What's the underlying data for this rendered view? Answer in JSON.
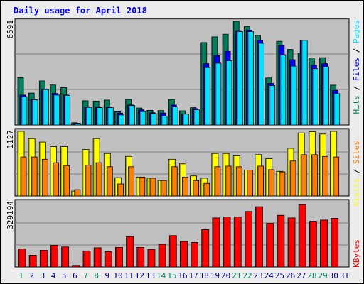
{
  "title": "Daily usage for April 2018",
  "colors": {
    "background": "#ececec",
    "panel": "#c0c0c0",
    "hits": "#00805c",
    "files": "#0000ff",
    "pages": "#00e0ff",
    "visits": "#ffff00",
    "sites": "#ff8000",
    "kbytes": "#ff0000",
    "title_text": "#0000ff",
    "weekend_label": "#00805c",
    "weekday_label": "#000080"
  },
  "chart_data": [
    {
      "type": "bar",
      "name": "hits-files-pages",
      "y_max_label": "6591",
      "ylim": [
        0,
        6591
      ],
      "categories": [
        "1",
        "2",
        "3",
        "4",
        "5",
        "6",
        "7",
        "8",
        "9",
        "10",
        "11",
        "12",
        "13",
        "14",
        "15",
        "16",
        "17",
        "18",
        "19",
        "20",
        "21",
        "22",
        "23",
        "24",
        "25",
        "26",
        "27",
        "28",
        "29",
        "30",
        "31"
      ],
      "weekend_days": [
        "1",
        "7",
        "8",
        "14",
        "15",
        "21",
        "22",
        "28",
        "29"
      ],
      "legend": [
        "Hits",
        "Files",
        "Pages"
      ],
      "series": [
        {
          "name": "Hits",
          "values": [
            3008,
            2029,
            2800,
            2541,
            2367,
            144,
            1540,
            1520,
            1580,
            840,
            1620,
            1080,
            930,
            915,
            1620,
            900,
            1100,
            5240,
            5600,
            5770,
            6591,
            6264,
            5700,
            2990,
            5320,
            4800,
            4560,
            4260,
            4280,
            2530,
            0
          ]
        },
        {
          "name": "Files",
          "values": [
            1900,
            1630,
            2270,
            2000,
            1900,
            110,
            1160,
            1140,
            1150,
            760,
            1270,
            960,
            780,
            760,
            1260,
            700,
            1040,
            3900,
            4400,
            4680,
            6000,
            6034,
            5400,
            2640,
            5040,
            4150,
            5400,
            3800,
            3900,
            2200,
            0
          ]
        },
        {
          "name": "Pages",
          "values": [
            1800,
            1600,
            2250,
            1900,
            1880,
            90,
            1120,
            1100,
            1100,
            640,
            1230,
            850,
            730,
            560,
            1150,
            690,
            960,
            3650,
            3930,
            4090,
            5940,
            5934,
            5194,
            2500,
            4440,
            3740,
            5380,
            3580,
            3700,
            1990,
            0
          ]
        }
      ]
    },
    {
      "type": "bar",
      "name": "visits-sites",
      "y_max_label": "1127",
      "ylim": [
        0,
        1127
      ],
      "categories": [
        "1",
        "2",
        "3",
        "4",
        "5",
        "6",
        "7",
        "8",
        "9",
        "10",
        "11",
        "12",
        "13",
        "14",
        "15",
        "16",
        "17",
        "18",
        "19",
        "20",
        "21",
        "22",
        "23",
        "24",
        "25",
        "26",
        "27",
        "28",
        "29",
        "30",
        "31"
      ],
      "legend": [
        "Sites",
        "Visits"
      ],
      "series": [
        {
          "name": "Visits",
          "values": [
            1127,
            1000,
            940,
            860,
            860,
            85,
            810,
            1000,
            740,
            320,
            690,
            330,
            310,
            270,
            640,
            560,
            350,
            310,
            740,
            740,
            700,
            450,
            720,
            650,
            430,
            830,
            1100,
            1120,
            1080,
            1127,
            0
          ]
        },
        {
          "name": "Sites",
          "values": [
            680,
            680,
            640,
            580,
            530,
            110,
            540,
            580,
            510,
            210,
            510,
            330,
            310,
            270,
            510,
            330,
            270,
            220,
            510,
            520,
            510,
            450,
            520,
            460,
            420,
            610,
            720,
            720,
            690,
            680,
            0
          ]
        }
      ]
    },
    {
      "type": "bar",
      "name": "kbytes",
      "y_max_label": "329194",
      "ylim": [
        0,
        329194
      ],
      "categories": [
        "1",
        "2",
        "3",
        "4",
        "5",
        "6",
        "7",
        "8",
        "9",
        "10",
        "11",
        "12",
        "13",
        "14",
        "15",
        "16",
        "17",
        "18",
        "19",
        "20",
        "21",
        "22",
        "23",
        "24",
        "25",
        "26",
        "27",
        "28",
        "29",
        "30",
        "31"
      ],
      "legend": [
        "KBytes"
      ],
      "series": [
        {
          "name": "KBytes",
          "values": [
            92000,
            60000,
            85000,
            110000,
            102000,
            8000,
            82000,
            98000,
            78000,
            100000,
            155000,
            100000,
            90000,
            115000,
            160000,
            130000,
            125000,
            190000,
            250000,
            255000,
            255000,
            283000,
            307000,
            222000,
            263000,
            250000,
            317000,
            233000,
            239000,
            248000,
            0
          ]
        }
      ]
    }
  ],
  "legend_labels": {
    "pages": "Pages",
    "files": "Files",
    "hits": "Hits",
    "sites": "Sites",
    "visits": "Visits",
    "kbytes": "KBytes",
    "separator": " / "
  }
}
